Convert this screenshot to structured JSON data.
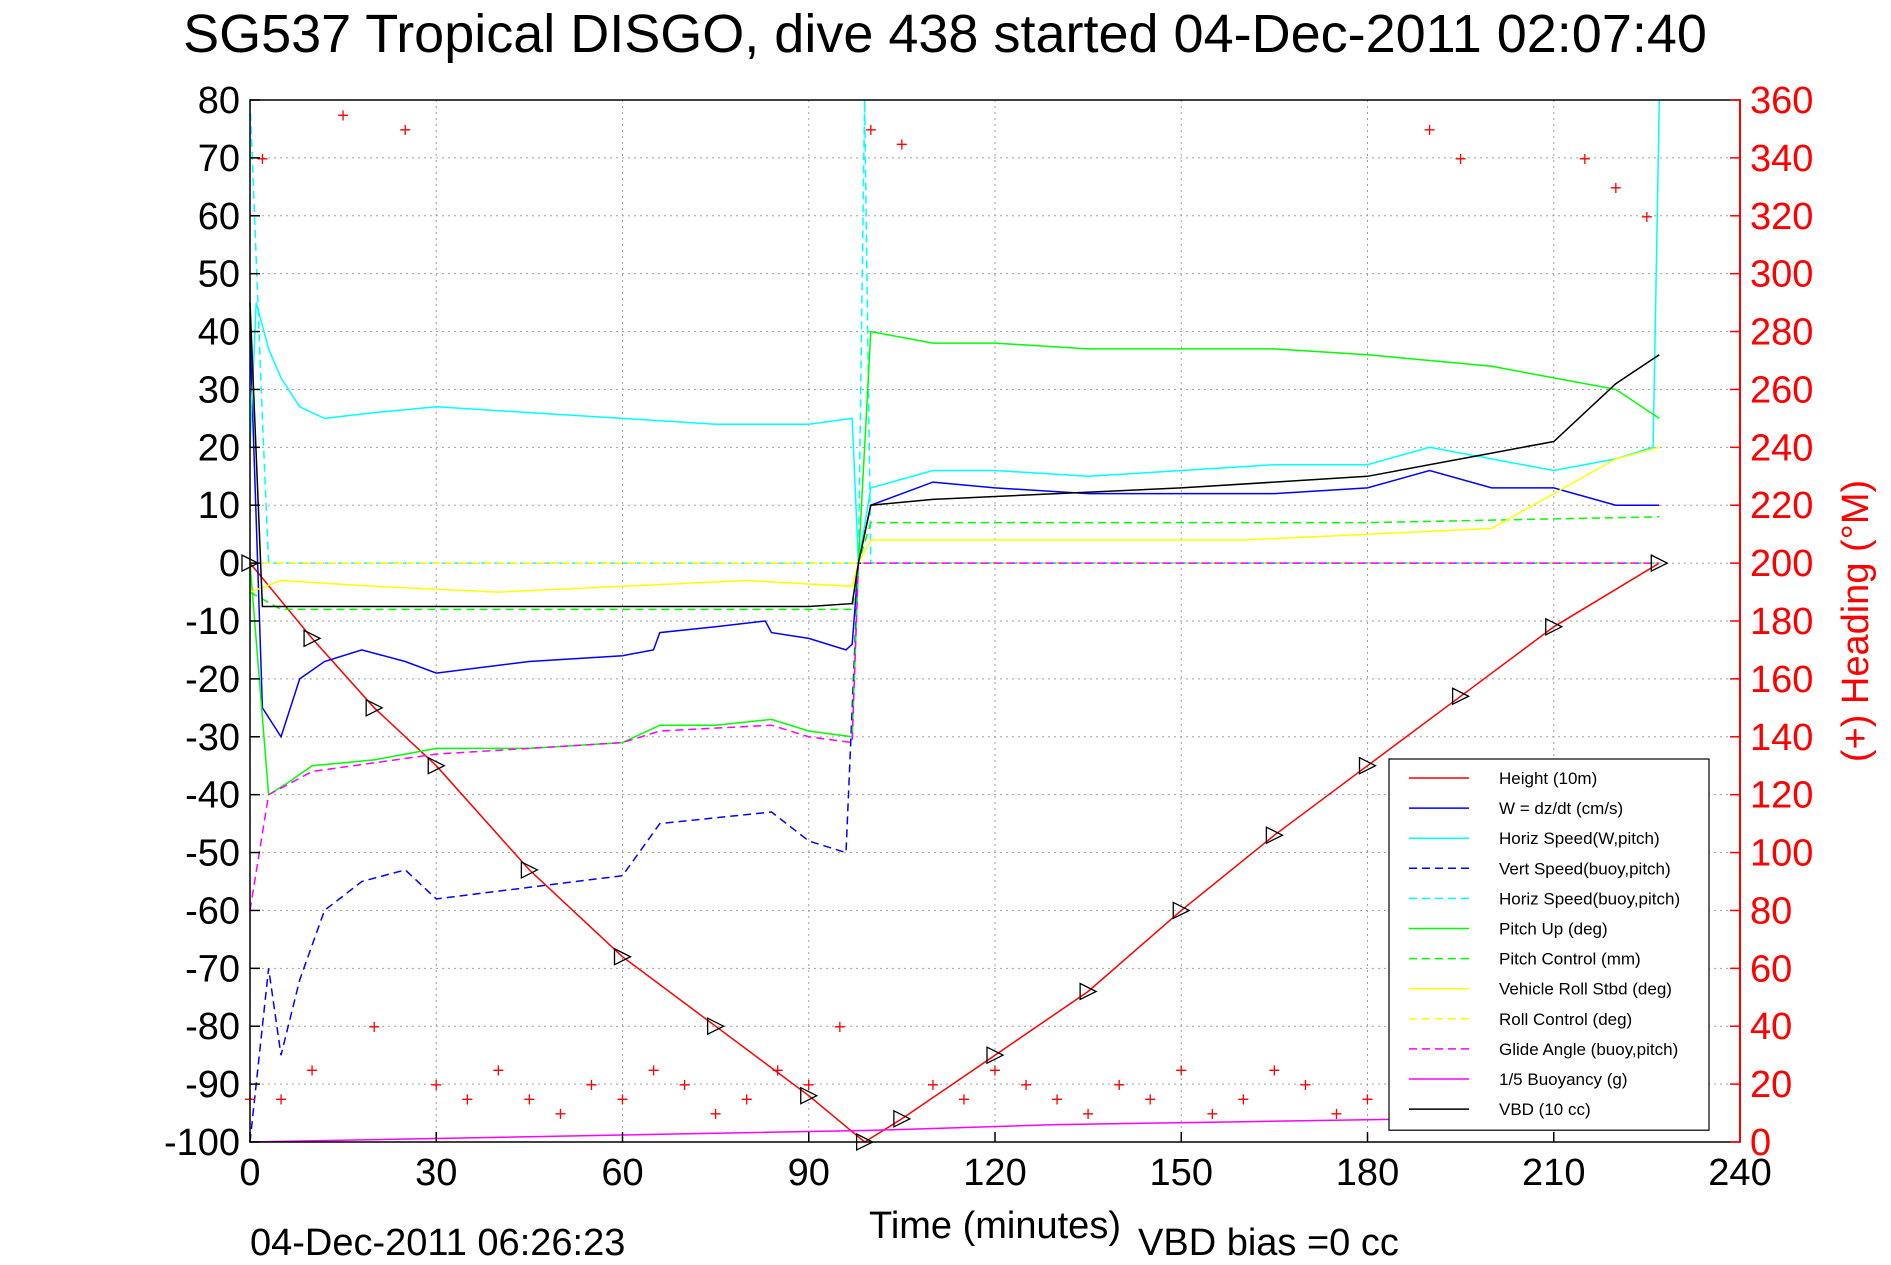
{
  "chart_data": {
    "type": "line",
    "title": "SG537 Tropical DISGO, dive 438 started 04-Dec-2011 02:07:40",
    "xlabel": "Time (minutes)",
    "ylabel": "",
    "y2label": "(+) Heading (°M)",
    "xlim": [
      0,
      240
    ],
    "ylim": [
      -100,
      80
    ],
    "y2lim": [
      0,
      360
    ],
    "xticks": [
      "0",
      "30",
      "60",
      "90",
      "120",
      "150",
      "180",
      "210",
      "240"
    ],
    "yticks": [
      "80",
      "70",
      "60",
      "50",
      "40",
      "30",
      "20",
      "10",
      "0",
      "-10",
      "-20",
      "-30",
      "-40",
      "-50",
      "-60",
      "-70",
      "-80",
      "-90",
      "-100"
    ],
    "y2ticks": [
      "360",
      "340",
      "320",
      "300",
      "280",
      "260",
      "240",
      "220",
      "200",
      "180",
      "160",
      "140",
      "120",
      "100",
      "80",
      "60",
      "40",
      "20",
      "0"
    ],
    "grid": true,
    "legend_position": "lower-right",
    "series": [
      {
        "name": "Height (10m)",
        "color": "#ff0000",
        "style": "solid",
        "x": [
          0,
          10,
          20,
          30,
          45,
          60,
          75,
          90,
          99,
          105,
          120,
          135,
          150,
          165,
          180,
          195,
          210,
          227
        ],
        "y": [
          0,
          -13,
          -25,
          -35,
          -53,
          -68,
          -80,
          -92,
          -100,
          -96,
          -85,
          -74,
          -60,
          -47,
          -35,
          -23,
          -11,
          0
        ]
      },
      {
        "name": "W = dz/dt (cm/s)",
        "color": "#0000ff",
        "style": "solid",
        "x": [
          0,
          2,
          5,
          8,
          12,
          18,
          25,
          30,
          45,
          60,
          65,
          66,
          75,
          83,
          84,
          90,
          96,
          97,
          98,
          100,
          110,
          120,
          135,
          150,
          165,
          180,
          190,
          200,
          210,
          220,
          227
        ],
        "y": [
          40,
          -25,
          -30,
          -20,
          -17,
          -15,
          -17,
          -19,
          -17,
          -16,
          -15,
          -12,
          -11,
          -10,
          -12,
          -13,
          -15,
          -14,
          0,
          10,
          14,
          13,
          12,
          12,
          12,
          13,
          16,
          13,
          13,
          10,
          10
        ]
      },
      {
        "name": "Horiz Speed(W,pitch)",
        "color": "#00ffff",
        "style": "solid",
        "x": [
          0,
          1,
          3,
          5,
          8,
          12,
          20,
          30,
          45,
          60,
          75,
          90,
          97,
          98,
          100,
          110,
          120,
          135,
          150,
          165,
          180,
          190,
          200,
          210,
          220,
          226,
          227
        ],
        "y": [
          20,
          45,
          37,
          32,
          27,
          25,
          26,
          27,
          26,
          25,
          24,
          24,
          25,
          0,
          13,
          16,
          16,
          15,
          16,
          17,
          17,
          20,
          18,
          16,
          18,
          20,
          80
        ]
      },
      {
        "name": "Vert Speed(buoy,pitch)",
        "color": "#0000ff",
        "style": "dashed",
        "x": [
          0,
          3,
          5,
          8,
          12,
          18,
          25,
          30,
          45,
          60,
          66,
          75,
          84,
          90,
          96,
          98,
          100,
          120,
          150,
          180,
          210,
          227
        ],
        "y": [
          -100,
          -70,
          -85,
          -72,
          -60,
          -55,
          -53,
          -58,
          -56,
          -54,
          -45,
          -44,
          -43,
          -48,
          -50,
          0,
          0,
          0,
          0,
          0,
          0,
          0
        ]
      },
      {
        "name": "Horiz Speed(buoy,pitch)",
        "color": "#00ffff",
        "style": "dashed",
        "x": [
          0,
          2,
          3,
          5,
          98,
          99,
          100,
          227
        ],
        "y": [
          80,
          25,
          0,
          0,
          0,
          80,
          0,
          0
        ]
      },
      {
        "name": "Pitch Up (deg)",
        "color": "#00ff00",
        "style": "solid",
        "x": [
          0,
          3,
          6,
          10,
          20,
          30,
          45,
          60,
          66,
          75,
          84,
          90,
          97,
          98,
          100,
          110,
          120,
          135,
          150,
          165,
          180,
          190,
          200,
          210,
          220,
          227
        ],
        "y": [
          0,
          -40,
          -38,
          -35,
          -34,
          -32,
          -32,
          -31,
          -28,
          -28,
          -27,
          -29,
          -30,
          0,
          40,
          38,
          38,
          37,
          37,
          37,
          36,
          35,
          34,
          32,
          30,
          25
        ]
      },
      {
        "name": "Pitch Control (mm)",
        "color": "#00ff00",
        "style": "dashed",
        "x": [
          0,
          5,
          97,
          98,
          100,
          180,
          227
        ],
        "y": [
          -5,
          -8,
          -8,
          0,
          7,
          7,
          8
        ]
      },
      {
        "name": "Vehicle Roll Stbd (deg)",
        "color": "#ffff00",
        "style": "solid",
        "x": [
          0,
          5,
          20,
          40,
          60,
          80,
          97,
          98,
          100,
          120,
          140,
          160,
          180,
          200,
          220,
          227
        ],
        "y": [
          -5,
          -3,
          -4,
          -5,
          -4,
          -3,
          -4,
          0,
          4,
          4,
          4,
          4,
          5,
          6,
          18,
          20
        ]
      },
      {
        "name": "Roll Control (deg)",
        "color": "#ffff00",
        "style": "dashed",
        "x": [
          0,
          5,
          50,
          97,
          100,
          150,
          227
        ],
        "y": [
          0,
          0,
          0,
          0,
          0,
          0,
          0
        ]
      },
      {
        "name": "Glide Angle (buoy,pitch)",
        "color": "#ff00ff",
        "style": "dashed",
        "x": [
          0,
          3,
          10,
          30,
          60,
          66,
          84,
          90,
          97,
          98,
          100,
          227
        ],
        "y": [
          -60,
          -40,
          -36,
          -33,
          -31,
          -29,
          -28,
          -30,
          -31,
          0,
          0,
          0
        ]
      },
      {
        "name": "1/5 Buoyancy (g)",
        "color": "#ff00ff",
        "style": "solid",
        "x": [
          0,
          100,
          130,
          160,
          190,
          220,
          227
        ],
        "y": [
          -100,
          -98,
          -97,
          -96.5,
          -96,
          -95,
          -95
        ]
      },
      {
        "name": "VBD (10 cc)",
        "color": "#000000",
        "style": "solid",
        "x": [
          0,
          2,
          20,
          50,
          90,
          97,
          98,
          100,
          110,
          150,
          180,
          200,
          210,
          220,
          227
        ],
        "y": [
          45,
          -7.5,
          -7.5,
          -7.5,
          -7.5,
          -7,
          0,
          10,
          11,
          13,
          15,
          19,
          21,
          31,
          36
        ]
      }
    ],
    "heading_markers": {
      "color": "#ff0000",
      "marker": "+",
      "x": [
        0,
        2,
        5,
        10,
        15,
        20,
        25,
        30,
        35,
        40,
        45,
        50,
        55,
        60,
        65,
        70,
        75,
        80,
        85,
        90,
        95,
        100,
        105,
        110,
        115,
        120,
        125,
        130,
        135,
        140,
        145,
        150,
        155,
        160,
        165,
        170,
        175,
        180,
        185,
        190,
        195,
        200,
        205,
        210,
        215,
        220,
        225
      ],
      "y": [
        15,
        340,
        15,
        25,
        355,
        40,
        350,
        20,
        15,
        25,
        15,
        10,
        20,
        15,
        25,
        20,
        10,
        15,
        25,
        20,
        40,
        350,
        345,
        20,
        15,
        25,
        20,
        15,
        10,
        20,
        15,
        25,
        10,
        15,
        25,
        20,
        10,
        15,
        50,
        350,
        340,
        10,
        20,
        15,
        340,
        330,
        320
      ]
    }
  }
}
